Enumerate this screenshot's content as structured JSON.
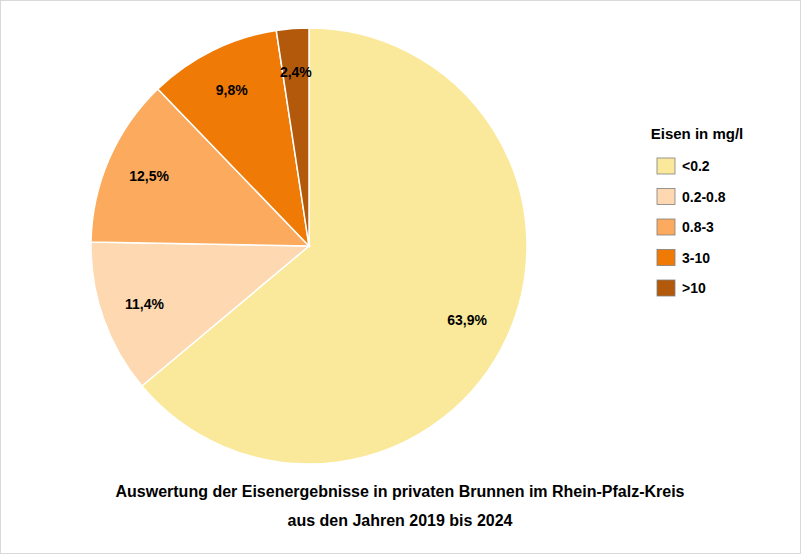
{
  "chart_data": {
    "type": "pie",
    "title": "Auswertung der Eisenergebnisse in privaten Brunnen im Rhein-Pfalz-Kreis aus den Jahren 2019 bis 2024",
    "legend_title": "Eisen in mg/l",
    "categories": [
      "<0.2",
      "0.2-0.8",
      "0.8-3",
      "3-10",
      ">10"
    ],
    "values": [
      63.9,
      11.4,
      12.5,
      9.8,
      2.4
    ],
    "value_labels": [
      "63,9%",
      "11,4%",
      "12,5%",
      "9,8%",
      "2,4%"
    ],
    "colors": [
      "#fae99b",
      "#fdd8b0",
      "#fbaa5e",
      "#ef7a06",
      "#b2590b"
    ],
    "data_labels": true,
    "legend": "right"
  }
}
